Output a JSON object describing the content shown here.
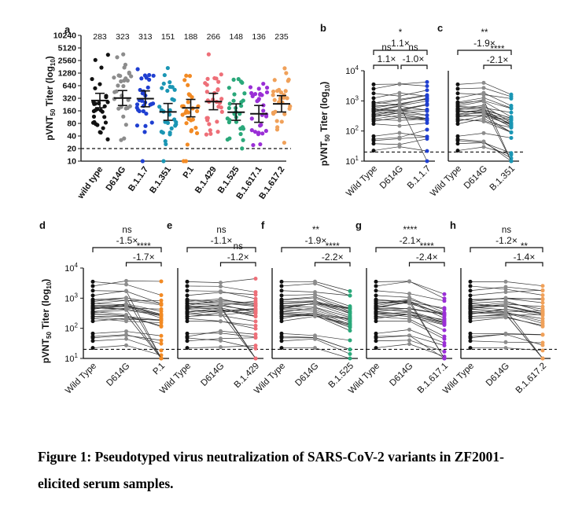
{
  "caption": {
    "line1": "Figure 1: Pseudotyped virus neutralization of SARS-CoV-2 variants in ZF2001-",
    "line2": "elicited serum samples."
  },
  "colors": {
    "wild_type": "#111111",
    "D614G": "#8c8c8c",
    "B.1.1.7": "#1f3fd1",
    "B.1.351": "#1a96b4",
    "P.1": "#f28a24",
    "B.1.429": "#ee6f78",
    "B.1.525": "#2aa87a",
    "B.1.617.1": "#9a2fd6",
    "B.1.617.2": "#f0a15a"
  },
  "chart_data": [
    {
      "panel": "a",
      "type": "scatter",
      "ylabel": "pVNT50 Titer (log10)",
      "yscale": "log2",
      "yticks": [
        "10",
        "20",
        "40",
        "80",
        "160",
        "320",
        "640",
        "1280",
        "2560",
        "5120",
        "10240"
      ],
      "ylim": [
        10,
        10240
      ],
      "threshold": 20,
      "categories": [
        "wild type",
        "D614G",
        "B.1.1.7",
        "B.1.351",
        "P.1",
        "B.1.429",
        "B.1.525",
        "B.1.617.1",
        "B.1.617.2"
      ],
      "gmt_labels": [
        "283",
        "323",
        "313",
        "151",
        "188",
        "266",
        "148",
        "136",
        "235"
      ],
      "gmt": [
        283,
        323,
        313,
        151,
        188,
        266,
        148,
        136,
        235
      ],
      "ci_low": [
        190,
        215,
        200,
        95,
        115,
        170,
        95,
        85,
        150
      ],
      "ci_high": [
        420,
        490,
        480,
        240,
        300,
        420,
        235,
        215,
        370
      ]
    },
    {
      "panel": "b",
      "type": "line",
      "ylabel": "pVNT50 Titer (log10)",
      "yticks": [
        "10^1",
        "10^2",
        "10^3",
        "10^4"
      ],
      "ylim": [
        10,
        10000
      ],
      "threshold": 20,
      "categories": [
        "Wild Type",
        "D614G",
        "B.1.1.7"
      ],
      "comparisons": [
        {
          "stars": "*",
          "fold": "1.1×",
          "pair": [
            "Wild Type",
            "B.1.1.7"
          ]
        },
        {
          "stars": "ns",
          "fold": "1.1×",
          "pair": [
            "Wild Type",
            "D614G"
          ]
        },
        {
          "stars": "ns",
          "fold": "-1.0×",
          "pair": [
            "D614G",
            "B.1.1.7"
          ]
        }
      ]
    },
    {
      "panel": "c",
      "type": "line",
      "yticks": [
        "10^1",
        "10^2",
        "10^3",
        "10^4"
      ],
      "ylim": [
        10,
        10000
      ],
      "threshold": 20,
      "categories": [
        "Wild Type",
        "D614G",
        "B.1.351"
      ],
      "comparisons": [
        {
          "stars": "**",
          "fold": "-1.9×",
          "pair": [
            "Wild Type",
            "B.1.351"
          ]
        },
        {
          "stars": "****",
          "fold": "-2.1×",
          "pair": [
            "D614G",
            "B.1.351"
          ]
        }
      ]
    },
    {
      "panel": "d",
      "type": "line",
      "ylabel": "pVNT50 Titer (log10)",
      "yticks": [
        "10^1",
        "10^2",
        "10^3",
        "10^4"
      ],
      "ylim": [
        10,
        10000
      ],
      "threshold": 20,
      "categories": [
        "Wild Type",
        "D614G",
        "P.1"
      ],
      "comparisons": [
        {
          "stars": "ns",
          "fold": "-1.5×",
          "pair": [
            "Wild Type",
            "P.1"
          ]
        },
        {
          "stars": "****",
          "fold": "-1.7×",
          "pair": [
            "D614G",
            "P.1"
          ]
        }
      ]
    },
    {
      "panel": "e",
      "type": "line",
      "yticks": [
        "10^1",
        "10^2",
        "10^3",
        "10^4"
      ],
      "ylim": [
        10,
        10000
      ],
      "threshold": 20,
      "categories": [
        "Wild Type",
        "D614G",
        "B.1.429"
      ],
      "comparisons": [
        {
          "stars": "ns",
          "fold": "-1.1×",
          "pair": [
            "Wild Type",
            "B.1.429"
          ]
        },
        {
          "stars": "ns",
          "fold": "-1.2×",
          "pair": [
            "D614G",
            "B.1.429"
          ]
        }
      ]
    },
    {
      "panel": "f",
      "type": "line",
      "yticks": [
        "10^1",
        "10^2",
        "10^3",
        "10^4"
      ],
      "ylim": [
        10,
        10000
      ],
      "threshold": 20,
      "categories": [
        "Wild Type",
        "D614G",
        "B.1.525"
      ],
      "comparisons": [
        {
          "stars": "**",
          "fold": "-1.9×",
          "pair": [
            "Wild Type",
            "B.1.525"
          ]
        },
        {
          "stars": "****",
          "fold": "-2.2×",
          "pair": [
            "D614G",
            "B.1.525"
          ]
        }
      ]
    },
    {
      "panel": "g",
      "type": "line",
      "yticks": [
        "10^1",
        "10^2",
        "10^3",
        "10^4"
      ],
      "ylim": [
        10,
        10000
      ],
      "threshold": 20,
      "categories": [
        "Wild Type",
        "D614G",
        "B.1.617.1"
      ],
      "comparisons": [
        {
          "stars": "****",
          "fold": "-2.1×",
          "pair": [
            "Wild Type",
            "B.1.617.1"
          ]
        },
        {
          "stars": "****",
          "fold": "-2.4×",
          "pair": [
            "D614G",
            "B.1.617.1"
          ]
        }
      ]
    },
    {
      "panel": "h",
      "type": "line",
      "yticks": [
        "10^1",
        "10^2",
        "10^3",
        "10^4"
      ],
      "ylim": [
        10,
        10000
      ],
      "threshold": 20,
      "categories": [
        "Wild Type",
        "D614G",
        "B.1.617.2"
      ],
      "comparisons": [
        {
          "stars": "ns",
          "fold": "-1.2×",
          "pair": [
            "Wild Type",
            "B.1.617.2"
          ]
        },
        {
          "stars": "**",
          "fold": "-1.4×",
          "pair": [
            "D614G",
            "B.1.617.2"
          ]
        }
      ]
    }
  ]
}
